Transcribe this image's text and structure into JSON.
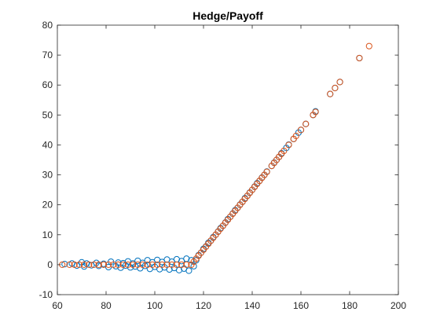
{
  "chart_data": {
    "type": "scatter",
    "title": "Hedge/Payoff",
    "xlabel": "",
    "ylabel": "",
    "xlim": [
      60,
      200
    ],
    "ylim": [
      -10,
      80
    ],
    "xticks": [
      60,
      80,
      100,
      120,
      140,
      160,
      180,
      200
    ],
    "yticks": [
      -10,
      0,
      10,
      20,
      30,
      40,
      50,
      60,
      70,
      80
    ],
    "grid": false,
    "legend": "none",
    "strike": 115,
    "series": [
      {
        "color": "#0072BD",
        "marker": "open-circle",
        "points": [
          [
            63,
            0.2
          ],
          [
            66,
            0.4
          ],
          [
            68,
            -0.3
          ],
          [
            70,
            0.8
          ],
          [
            71,
            -0.6
          ],
          [
            72,
            0.4
          ],
          [
            74,
            -0.2
          ],
          [
            76,
            0.6
          ],
          [
            77,
            -0.4
          ],
          [
            79,
            0.3
          ],
          [
            81,
            -0.8
          ],
          [
            82,
            1.0
          ],
          [
            84,
            -0.5
          ],
          [
            85,
            0.7
          ],
          [
            86,
            -1.0
          ],
          [
            87,
            0.5
          ],
          [
            88,
            -0.3
          ],
          [
            89,
            1.1
          ],
          [
            90,
            -0.9
          ],
          [
            91,
            0.4
          ],
          [
            92,
            -0.6
          ],
          [
            93,
            1.3
          ],
          [
            94,
            -1.2
          ],
          [
            95,
            0.6
          ],
          [
            96,
            -0.4
          ],
          [
            97,
            1.5
          ],
          [
            98,
            -1.4
          ],
          [
            99,
            0.8
          ],
          [
            100,
            -0.7
          ],
          [
            101,
            1.6
          ],
          [
            102,
            -1.5
          ],
          [
            103,
            0.9
          ],
          [
            104,
            -0.9
          ],
          [
            105,
            1.7
          ],
          [
            106,
            -1.6
          ],
          [
            107,
            1.0
          ],
          [
            108,
            -1.1
          ],
          [
            109,
            1.8
          ],
          [
            110,
            -1.8
          ],
          [
            111,
            1.2
          ],
          [
            112,
            -1.3
          ],
          [
            113,
            2.0
          ],
          [
            114,
            -2.0
          ],
          [
            115,
            1.5
          ],
          [
            116,
            -0.5
          ],
          [
            117,
            1.5
          ],
          [
            118,
            3.2
          ],
          [
            119,
            4.0
          ],
          [
            120,
            5.3
          ],
          [
            121,
            6.1
          ],
          [
            122,
            7.3
          ],
          [
            123,
            8.0
          ],
          [
            124,
            9.2
          ],
          [
            125,
            10.0
          ],
          [
            126,
            11.1
          ],
          [
            127,
            12.2
          ],
          [
            128,
            13.0
          ],
          [
            129,
            14.1
          ],
          [
            130,
            15.2
          ],
          [
            131,
            16.0
          ],
          [
            132,
            17.1
          ],
          [
            133,
            18.2
          ],
          [
            134,
            19.0
          ],
          [
            135,
            20.1
          ],
          [
            136,
            21.0
          ],
          [
            137,
            22.2
          ],
          [
            138,
            23.0
          ],
          [
            139,
            24.1
          ],
          [
            140,
            25.0
          ],
          [
            141,
            26.1
          ],
          [
            142,
            27.2
          ],
          [
            143,
            28.0
          ],
          [
            144,
            29.1
          ],
          [
            145,
            30.0
          ],
          [
            146,
            31.1
          ],
          [
            148,
            33.0
          ],
          [
            149,
            34.1
          ],
          [
            150,
            35.0
          ],
          [
            151,
            36.0
          ],
          [
            152,
            37.2
          ],
          [
            154,
            39.0
          ],
          [
            155,
            40.1
          ],
          [
            157,
            42.0
          ],
          [
            159,
            44.1
          ],
          [
            160,
            45.0
          ],
          [
            162,
            47.0
          ],
          [
            165,
            50.0
          ],
          [
            166,
            51.2
          ],
          [
            172,
            57.0
          ],
          [
            174,
            59.0
          ],
          [
            176,
            61.0
          ],
          [
            184,
            69.0
          ]
        ]
      },
      {
        "color": "#D95319",
        "marker": "open-circle",
        "points": [
          [
            62,
            0
          ],
          [
            65,
            0
          ],
          [
            67,
            0
          ],
          [
            69,
            0
          ],
          [
            71,
            0
          ],
          [
            73,
            0
          ],
          [
            75,
            0
          ],
          [
            77,
            0
          ],
          [
            79,
            0
          ],
          [
            81,
            0
          ],
          [
            83,
            0
          ],
          [
            85,
            0
          ],
          [
            87,
            0
          ],
          [
            89,
            0
          ],
          [
            91,
            0
          ],
          [
            93,
            0
          ],
          [
            95,
            0
          ],
          [
            97,
            0
          ],
          [
            99,
            0
          ],
          [
            101,
            0
          ],
          [
            103,
            0
          ],
          [
            105,
            0
          ],
          [
            107,
            0
          ],
          [
            109,
            0
          ],
          [
            111,
            0
          ],
          [
            113,
            0
          ],
          [
            115,
            0
          ],
          [
            116,
            1
          ],
          [
            117,
            2
          ],
          [
            118,
            3
          ],
          [
            119,
            4
          ],
          [
            120,
            5
          ],
          [
            121,
            6
          ],
          [
            122,
            7
          ],
          [
            123,
            8
          ],
          [
            124,
            9
          ],
          [
            125,
            10
          ],
          [
            126,
            11
          ],
          [
            127,
            12
          ],
          [
            128,
            13
          ],
          [
            129,
            14
          ],
          [
            130,
            15
          ],
          [
            131,
            16
          ],
          [
            132,
            17
          ],
          [
            133,
            18
          ],
          [
            134,
            19
          ],
          [
            135,
            20
          ],
          [
            136,
            21
          ],
          [
            137,
            22
          ],
          [
            138,
            23
          ],
          [
            139,
            24
          ],
          [
            140,
            25
          ],
          [
            141,
            26
          ],
          [
            142,
            27
          ],
          [
            143,
            28
          ],
          [
            144,
            29
          ],
          [
            145,
            30
          ],
          [
            146,
            31
          ],
          [
            148,
            33
          ],
          [
            149,
            34
          ],
          [
            150,
            35
          ],
          [
            151,
            36
          ],
          [
            152,
            37
          ],
          [
            153,
            38
          ],
          [
            155,
            40
          ],
          [
            157,
            42
          ],
          [
            158,
            43
          ],
          [
            160,
            45
          ],
          [
            162,
            47
          ],
          [
            165,
            50
          ],
          [
            166,
            51
          ],
          [
            172,
            57
          ],
          [
            174,
            59
          ],
          [
            176,
            61
          ],
          [
            184,
            69
          ],
          [
            188,
            73
          ]
        ]
      }
    ]
  }
}
